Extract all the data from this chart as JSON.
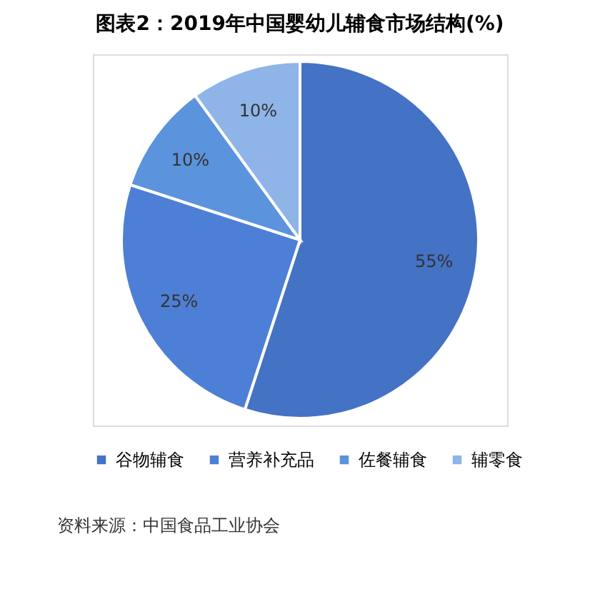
{
  "chart_data": {
    "type": "pie",
    "title": "图表2：2019年中国婴幼儿辅食市场结构(%)",
    "categories": [
      "谷物辅食",
      "营养补充品",
      "佐餐辅食",
      "辅零食"
    ],
    "values": [
      55,
      25,
      10,
      10
    ],
    "colors": [
      "#4472c4",
      "#4d7fd6",
      "#5b93dc",
      "#8eb4e8"
    ],
    "value_labels": [
      "55%",
      "25%",
      "10%",
      "10%"
    ],
    "legend": "bottom",
    "annotations": [
      "资料来源：中国食品工业协会"
    ]
  }
}
